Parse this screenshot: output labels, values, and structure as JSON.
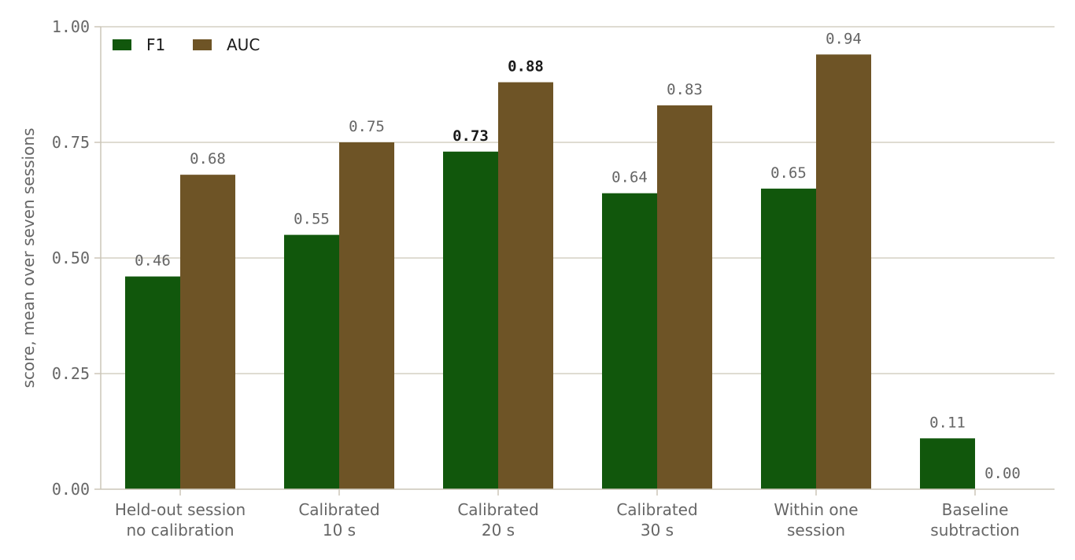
{
  "chart_data": {
    "type": "bar",
    "categories": [
      [
        "Held-out session",
        "no calibration"
      ],
      [
        "Calibrated",
        "10 s"
      ],
      [
        "Calibrated",
        "20 s"
      ],
      [
        "Calibrated",
        "30 s"
      ],
      [
        "Within one",
        "session"
      ],
      [
        "Baseline",
        "subtraction"
      ]
    ],
    "series": [
      {
        "name": "F1",
        "color": "#11570c",
        "values": [
          0.46,
          0.55,
          0.73,
          0.64,
          0.65,
          0.11
        ],
        "labels": [
          "0.46",
          "0.55",
          "0.73",
          "0.64",
          "0.65",
          "0.11"
        ],
        "bold": [
          false,
          false,
          true,
          false,
          false,
          false
        ]
      },
      {
        "name": "AUC",
        "color": "#6e5426",
        "values": [
          0.68,
          0.75,
          0.88,
          0.83,
          0.94,
          0.0
        ],
        "labels": [
          "0.68",
          "0.75",
          "0.88",
          "0.83",
          "0.94",
          "0.00"
        ],
        "bold": [
          false,
          false,
          true,
          false,
          false,
          false
        ]
      }
    ],
    "xlabel": "",
    "ylabel": "score, mean over seven sessions",
    "ylim": [
      0,
      1
    ],
    "yticks": [
      0,
      0.25,
      0.5,
      0.75,
      1.0
    ],
    "ytick_labels": [
      "0.00",
      "0.25",
      "0.50",
      "0.75",
      "1.00"
    ],
    "grid": "horizontal",
    "legend": "top-left",
    "colors": {
      "grid": "#ccc6b8",
      "axis": "#ccc6b8"
    }
  }
}
